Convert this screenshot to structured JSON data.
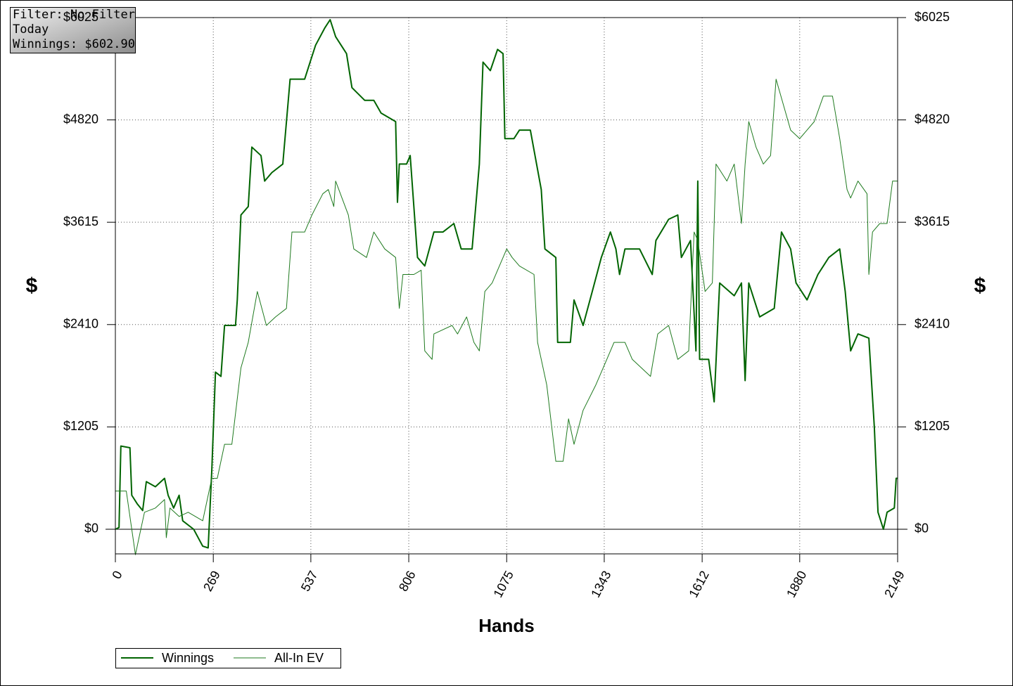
{
  "info_box": {
    "lines": [
      "Filter: No Filter",
      "Today",
      "Winnings: $602.90"
    ]
  },
  "chart_data": {
    "type": "line",
    "xlabel": "Hands",
    "ylabel": "$",
    "y2label": "$",
    "xlim": [
      0,
      2149
    ],
    "xticks": [
      0,
      269,
      537,
      806,
      1075,
      1343,
      1612,
      1880,
      2149
    ],
    "ylim": [
      -290,
      6025
    ],
    "yticks": [
      {
        "value": 0,
        "label": "$0"
      },
      {
        "value": 1205,
        "label": "$1205"
      },
      {
        "value": 2410,
        "label": "$2410"
      },
      {
        "value": 3615,
        "label": "$3615"
      },
      {
        "value": 4820,
        "label": "$4820"
      },
      {
        "value": 6025,
        "label": "$6025"
      }
    ],
    "y2lim": [
      -290,
      6025
    ],
    "y2ticks": [
      {
        "value": 0,
        "label": "$0"
      },
      {
        "value": 1205,
        "label": "$1205"
      },
      {
        "value": 2410,
        "label": "$2410"
      },
      {
        "value": 3615,
        "label": "$3615"
      },
      {
        "value": 4820,
        "label": "$4820"
      },
      {
        "value": 6025,
        "label": "$6025"
      }
    ],
    "grid": true,
    "series": [
      {
        "name": "Winnings",
        "color": "#006400",
        "x": [
          0,
          10,
          15,
          40,
          45,
          60,
          75,
          85,
          110,
          135,
          145,
          160,
          175,
          185,
          215,
          240,
          255,
          265,
          275,
          290,
          300,
          330,
          335,
          345,
          365,
          375,
          400,
          410,
          430,
          460,
          480,
          520,
          535,
          550,
          575,
          590,
          605,
          635,
          650,
          685,
          710,
          730,
          770,
          775,
          780,
          800,
          810,
          830,
          850,
          875,
          900,
          930,
          950,
          980,
          1000,
          1010,
          1030,
          1050,
          1065,
          1070,
          1095,
          1110,
          1140,
          1170,
          1180,
          1210,
          1215,
          1250,
          1260,
          1285,
          1310,
          1335,
          1360,
          1375,
          1385,
          1400,
          1440,
          1475,
          1485,
          1520,
          1545,
          1555,
          1580,
          1595,
          1600,
          1605,
          1630,
          1645,
          1660,
          1700,
          1720,
          1730,
          1740,
          1770,
          1810,
          1830,
          1855,
          1870,
          1900,
          1930,
          1960,
          1990,
          2005,
          2020,
          2040,
          2070,
          2085,
          2095,
          2110,
          2120,
          2140,
          2145,
          2149
        ],
        "values": [
          0,
          20,
          980,
          960,
          400,
          300,
          220,
          560,
          500,
          600,
          400,
          250,
          400,
          100,
          0,
          -200,
          -220,
          700,
          1850,
          1800,
          2400,
          2400,
          2700,
          3700,
          3800,
          4500,
          4400,
          4100,
          4200,
          4300,
          5300,
          5300,
          5500,
          5700,
          5900,
          6000,
          5800,
          5600,
          5200,
          5050,
          5050,
          4900,
          4800,
          3850,
          4300,
          4300,
          4400,
          3200,
          3100,
          3500,
          3500,
          3600,
          3300,
          3300,
          4300,
          5500,
          5400,
          5650,
          5600,
          4600,
          4600,
          4700,
          4700,
          4000,
          3300,
          3200,
          2200,
          2200,
          2700,
          2400,
          2800,
          3200,
          3500,
          3300,
          3000,
          3300,
          3300,
          3000,
          3400,
          3650,
          3700,
          3200,
          3400,
          2100,
          4100,
          2000,
          2000,
          1500,
          2900,
          2750,
          2900,
          1750,
          2900,
          2500,
          2600,
          3500,
          3300,
          2900,
          2700,
          3000,
          3200,
          3300,
          2800,
          2100,
          2300,
          2250,
          1200,
          200,
          0,
          200,
          250,
          600,
          600
        ]
      },
      {
        "name": "All-In EV",
        "color": "#1f7a1f",
        "x": [
          0,
          15,
          30,
          45,
          55,
          65,
          80,
          110,
          135,
          140,
          150,
          175,
          200,
          240,
          265,
          280,
          300,
          320,
          345,
          365,
          390,
          415,
          440,
          470,
          485,
          520,
          540,
          570,
          585,
          600,
          605,
          640,
          655,
          690,
          710,
          740,
          770,
          780,
          790,
          820,
          840,
          850,
          870,
          875,
          925,
          940,
          965,
          985,
          1000,
          1015,
          1035,
          1055,
          1075,
          1090,
          1110,
          1150,
          1160,
          1185,
          1210,
          1230,
          1245,
          1260,
          1285,
          1320,
          1350,
          1370,
          1400,
          1420,
          1470,
          1490,
          1520,
          1545,
          1575,
          1590,
          1600,
          1620,
          1640,
          1650,
          1680,
          1700,
          1720,
          1730,
          1740,
          1760,
          1780,
          1800,
          1815,
          1835,
          1855,
          1880,
          1900,
          1920,
          1945,
          1970,
          1990,
          2010,
          2020,
          2040,
          2065,
          2070,
          2080,
          2100,
          2120,
          2135,
          2149
        ],
        "values": [
          450,
          450,
          450,
          0,
          -300,
          -100,
          200,
          250,
          350,
          -100,
          250,
          150,
          200,
          100,
          600,
          600,
          1000,
          1000,
          1900,
          2200,
          2800,
          2400,
          2500,
          2600,
          3500,
          3500,
          3700,
          3950,
          4000,
          3800,
          4100,
          3700,
          3300,
          3200,
          3500,
          3300,
          3200,
          2600,
          3000,
          3000,
          3050,
          2100,
          2000,
          2300,
          2400,
          2300,
          2500,
          2200,
          2100,
          2800,
          2900,
          3100,
          3300,
          3200,
          3100,
          3000,
          2200,
          1700,
          800,
          800,
          1300,
          1000,
          1400,
          1700,
          2000,
          2200,
          2200,
          2000,
          1800,
          2300,
          2400,
          2000,
          2100,
          3500,
          3400,
          2800,
          2900,
          4300,
          4100,
          4300,
          3600,
          4300,
          4800,
          4500,
          4300,
          4400,
          5300,
          5000,
          4700,
          4600,
          4700,
          4800,
          5100,
          5100,
          4600,
          4000,
          3900,
          4100,
          3950,
          3000,
          3500,
          3600,
          3600,
          4100,
          4100
        ]
      }
    ]
  }
}
